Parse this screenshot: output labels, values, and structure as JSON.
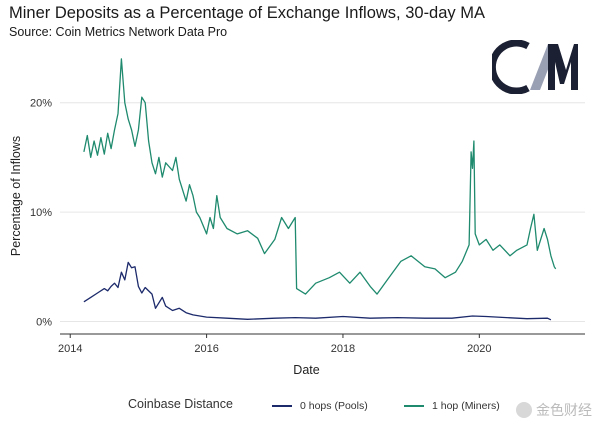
{
  "header": {
    "title": "Miner Deposits as a Percentage of Exchange Inflows, 30-day MA",
    "subtitle": "Source: Coin Metrics Network Data Pro"
  },
  "logo": {
    "icon": "coinmetrics-logo-icon"
  },
  "legend": {
    "title": "Coinbase Distance",
    "items": [
      {
        "label": "0 hops (Pools)",
        "color": "#1c2a6b"
      },
      {
        "label": "1 hop (Miners)",
        "color": "#1f8a6e"
      }
    ]
  },
  "watermark": {
    "text": "金色财经"
  },
  "chart_data": {
    "type": "line",
    "title": "Miner Deposits as a Percentage of Exchange Inflows, 30-day MA",
    "subtitle": "Source: Coin Metrics Network Data Pro",
    "xlabel": "Date",
    "ylabel": "Percentage of Inflows",
    "xlim": [
      2013.85,
      2021.55
    ],
    "ylim": [
      -0.6,
      25
    ],
    "x_ticks": [
      {
        "value": 2014,
        "label": "2014"
      },
      {
        "value": 2016,
        "label": "2016"
      },
      {
        "value": 2018,
        "label": "2018"
      },
      {
        "value": 2020,
        "label": "2020"
      }
    ],
    "y_ticks": [
      {
        "value": 0,
        "label": "0%"
      },
      {
        "value": 10,
        "label": "10%"
      },
      {
        "value": 20,
        "label": "20%"
      }
    ],
    "grid": "horizontal",
    "legend_position": "bottom",
    "series": [
      {
        "name": "0 hops (Pools)",
        "color": "#1c2a6b",
        "points": [
          [
            2014.2,
            1.8
          ],
          [
            2014.3,
            2.2
          ],
          [
            2014.4,
            2.6
          ],
          [
            2014.5,
            3.0
          ],
          [
            2014.55,
            2.8
          ],
          [
            2014.6,
            3.2
          ],
          [
            2014.65,
            3.5
          ],
          [
            2014.7,
            3.1
          ],
          [
            2014.75,
            4.5
          ],
          [
            2014.8,
            3.8
          ],
          [
            2014.85,
            5.4
          ],
          [
            2014.9,
            4.9
          ],
          [
            2014.95,
            5.0
          ],
          [
            2015.0,
            3.2
          ],
          [
            2015.05,
            2.6
          ],
          [
            2015.1,
            3.1
          ],
          [
            2015.2,
            2.5
          ],
          [
            2015.25,
            1.2
          ],
          [
            2015.35,
            2.2
          ],
          [
            2015.4,
            1.4
          ],
          [
            2015.5,
            1.0
          ],
          [
            2015.6,
            1.2
          ],
          [
            2015.7,
            0.8
          ],
          [
            2015.8,
            0.6
          ],
          [
            2016.0,
            0.4
          ],
          [
            2016.3,
            0.3
          ],
          [
            2016.6,
            0.2
          ],
          [
            2017.0,
            0.3
          ],
          [
            2017.3,
            0.35
          ],
          [
            2017.6,
            0.3
          ],
          [
            2018.0,
            0.45
          ],
          [
            2018.4,
            0.3
          ],
          [
            2018.8,
            0.35
          ],
          [
            2019.2,
            0.3
          ],
          [
            2019.6,
            0.3
          ],
          [
            2019.9,
            0.5
          ],
          [
            2020.1,
            0.45
          ],
          [
            2020.4,
            0.35
          ],
          [
            2020.7,
            0.25
          ],
          [
            2021.0,
            0.3
          ],
          [
            2021.05,
            0.15
          ]
        ]
      },
      {
        "name": "1 hop (Miners)",
        "color": "#1f8a6e",
        "points": [
          [
            2014.2,
            15.5
          ],
          [
            2014.25,
            17.0
          ],
          [
            2014.3,
            15.0
          ],
          [
            2014.35,
            16.5
          ],
          [
            2014.4,
            15.2
          ],
          [
            2014.45,
            16.8
          ],
          [
            2014.5,
            15.3
          ],
          [
            2014.55,
            17.2
          ],
          [
            2014.6,
            15.8
          ],
          [
            2014.65,
            17.5
          ],
          [
            2014.7,
            19.0
          ],
          [
            2014.75,
            24.0
          ],
          [
            2014.8,
            20.0
          ],
          [
            2014.85,
            18.5
          ],
          [
            2014.9,
            17.5
          ],
          [
            2014.95,
            16.0
          ],
          [
            2015.0,
            17.5
          ],
          [
            2015.05,
            20.5
          ],
          [
            2015.1,
            20.0
          ],
          [
            2015.15,
            16.5
          ],
          [
            2015.2,
            14.5
          ],
          [
            2015.25,
            13.5
          ],
          [
            2015.3,
            15.0
          ],
          [
            2015.35,
            13.2
          ],
          [
            2015.4,
            14.5
          ],
          [
            2015.5,
            13.8
          ],
          [
            2015.55,
            15.0
          ],
          [
            2015.6,
            13.0
          ],
          [
            2015.7,
            11.0
          ],
          [
            2015.75,
            12.5
          ],
          [
            2015.8,
            11.5
          ],
          [
            2015.85,
            10.0
          ],
          [
            2015.9,
            9.5
          ],
          [
            2016.0,
            8.0
          ],
          [
            2016.05,
            9.5
          ],
          [
            2016.1,
            8.5
          ],
          [
            2016.15,
            11.5
          ],
          [
            2016.2,
            9.5
          ],
          [
            2016.3,
            8.5
          ],
          [
            2016.45,
            8.0
          ],
          [
            2016.6,
            8.3
          ],
          [
            2016.75,
            7.6
          ],
          [
            2016.85,
            6.2
          ],
          [
            2017.0,
            7.5
          ],
          [
            2017.1,
            9.5
          ],
          [
            2017.2,
            8.5
          ],
          [
            2017.3,
            9.5
          ],
          [
            2017.32,
            3.0
          ],
          [
            2017.45,
            2.5
          ],
          [
            2017.6,
            3.5
          ],
          [
            2017.8,
            4.0
          ],
          [
            2017.95,
            4.5
          ],
          [
            2018.1,
            3.5
          ],
          [
            2018.25,
            4.5
          ],
          [
            2018.4,
            3.2
          ],
          [
            2018.5,
            2.5
          ],
          [
            2018.65,
            3.8
          ],
          [
            2018.85,
            5.5
          ],
          [
            2019.0,
            6.0
          ],
          [
            2019.2,
            5.0
          ],
          [
            2019.35,
            4.8
          ],
          [
            2019.5,
            4.0
          ],
          [
            2019.65,
            4.5
          ],
          [
            2019.75,
            5.5
          ],
          [
            2019.85,
            7.0
          ],
          [
            2019.88,
            15.5
          ],
          [
            2019.9,
            14.0
          ],
          [
            2019.92,
            16.5
          ],
          [
            2019.94,
            8.0
          ],
          [
            2020.0,
            7.0
          ],
          [
            2020.1,
            7.5
          ],
          [
            2020.2,
            6.5
          ],
          [
            2020.3,
            7.0
          ],
          [
            2020.45,
            6.0
          ],
          [
            2020.55,
            6.5
          ],
          [
            2020.7,
            7.0
          ],
          [
            2020.75,
            8.5
          ],
          [
            2020.8,
            9.8
          ],
          [
            2020.85,
            6.5
          ],
          [
            2020.95,
            8.5
          ],
          [
            2021.0,
            7.5
          ],
          [
            2021.05,
            6.0
          ],
          [
            2021.1,
            5.0
          ],
          [
            2021.12,
            4.8
          ]
        ]
      }
    ]
  }
}
